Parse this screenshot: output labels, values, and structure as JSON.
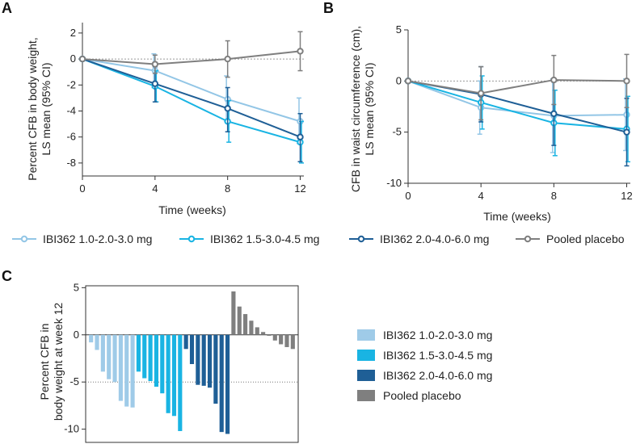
{
  "chart_data": [
    {
      "panel": "A",
      "type": "line",
      "ylabel_line1": "Percent CFB in body weight,",
      "ylabel_line2": "LS mean (95% CI)",
      "xlabel": "Time  (weeks)",
      "x": [
        0,
        4,
        8,
        12
      ],
      "xlim": [
        0,
        12.2
      ],
      "ylim": [
        -9,
        2.8
      ],
      "yticks": [
        2,
        0,
        -2,
        -4,
        -6,
        -8
      ],
      "series": [
        {
          "name": "IBI362 1.0-2.0-3.0 mg",
          "color": "#93c6e6",
          "values": [
            0,
            -0.9,
            -3.1,
            -4.8
          ],
          "ci_low": [
            0,
            -2.2,
            -4.8,
            -6.5
          ],
          "ci_high": [
            0,
            0.4,
            -1.3,
            -3.0
          ]
        },
        {
          "name": "IBI362 1.5-3.0-4.5 mg",
          "color": "#19b4e3",
          "values": [
            0,
            -2.1,
            -4.8,
            -6.4
          ],
          "ci_low": [
            0,
            -3.3,
            -6.4,
            -8.0
          ],
          "ci_high": [
            0,
            -0.9,
            -3.2,
            -4.8
          ]
        },
        {
          "name": "IBI362 2.0-4.0-6.0 mg",
          "color": "#1f5f96",
          "values": [
            0,
            -1.9,
            -3.8,
            -6.0
          ],
          "ci_low": [
            0,
            -3.3,
            -5.6,
            -7.9
          ],
          "ci_high": [
            0,
            -0.6,
            -2.2,
            -4.2
          ]
        },
        {
          "name": "Pooled placebo",
          "color": "#7f7f7f",
          "values": [
            0,
            -0.4,
            0.0,
            0.6
          ],
          "ci_low": [
            0,
            -1.1,
            -1.4,
            -0.9
          ],
          "ci_high": [
            0,
            0.3,
            1.4,
            2.1
          ]
        }
      ]
    },
    {
      "panel": "B",
      "type": "line",
      "ylabel_line1": "CFB in waist circumference (cm),",
      "ylabel_line2": "LS mean (95% CI)",
      "xlabel": "Time  (weeks)",
      "x": [
        0,
        4,
        8,
        12
      ],
      "xlim": [
        0,
        12.2
      ],
      "ylim": [
        -10,
        5
      ],
      "yticks": [
        5,
        0,
        -5,
        -10
      ],
      "series": [
        {
          "name": "IBI362 1.0-2.0-3.0 mg",
          "color": "#93c6e6",
          "values": [
            0,
            -2.6,
            -3.4,
            -3.3
          ],
          "ci_low": [
            0,
            -5.2,
            -7.0,
            -6.8
          ],
          "ci_high": [
            0,
            0.0,
            0.2,
            0.2
          ]
        },
        {
          "name": "IBI362 1.5-3.0-4.5 mg",
          "color": "#19b4e3",
          "values": [
            0,
            -2.1,
            -4.1,
            -4.7
          ],
          "ci_low": [
            0,
            -4.7,
            -7.3,
            -7.9
          ],
          "ci_high": [
            0,
            0.5,
            -0.9,
            -1.5
          ]
        },
        {
          "name": "IBI362 2.0-4.0-6.0 mg",
          "color": "#1f5f96",
          "values": [
            0,
            -1.3,
            -3.2,
            -5.0
          ],
          "ci_low": [
            0,
            -4.0,
            -6.3,
            -8.3
          ],
          "ci_high": [
            0,
            1.4,
            -0.1,
            -1.7
          ]
        },
        {
          "name": "Pooled placebo",
          "color": "#7f7f7f",
          "values": [
            0,
            -1.2,
            0.1,
            0.0
          ],
          "ci_low": [
            0,
            -3.8,
            -2.3,
            -2.6
          ],
          "ci_high": [
            0,
            1.4,
            2.5,
            2.6
          ]
        }
      ]
    },
    {
      "panel": "C",
      "type": "bar",
      "ylabel_line1": "Percent CFB in",
      "ylabel_line2": "body weight at week 12",
      "ylim": [
        -11.4,
        5.2
      ],
      "yticks": [
        5,
        0,
        -5,
        -10
      ],
      "reference_line": -5,
      "groups": [
        {
          "name": "IBI362 1.0-2.0-3.0 mg",
          "color": "#9fcbe8",
          "values": [
            -0.8,
            -1.6,
            -3.9,
            -4.7,
            -5.0,
            -7.0,
            -7.6,
            -7.7
          ]
        },
        {
          "name": "IBI362 1.5-3.0-4.5 mg",
          "color": "#19b4e3",
          "values": [
            -3.9,
            -4.6,
            -4.9,
            -5.5,
            -6.2,
            -8.3,
            -8.6,
            -10.2
          ]
        },
        {
          "name": "IBI362 2.0-4.0-6.0 mg",
          "color": "#1f5f96",
          "values": [
            -1.5,
            -3.1,
            -5.3,
            -5.4,
            -5.6,
            -7.3,
            -10.3,
            -10.5
          ]
        },
        {
          "name": "Pooled placebo",
          "color": "#7f7f7f",
          "values": [
            4.6,
            3.0,
            2.2,
            1.5,
            0.8,
            0.3,
            -0.1,
            -0.6,
            -1.0,
            -1.3,
            -1.5
          ]
        }
      ]
    }
  ]
}
